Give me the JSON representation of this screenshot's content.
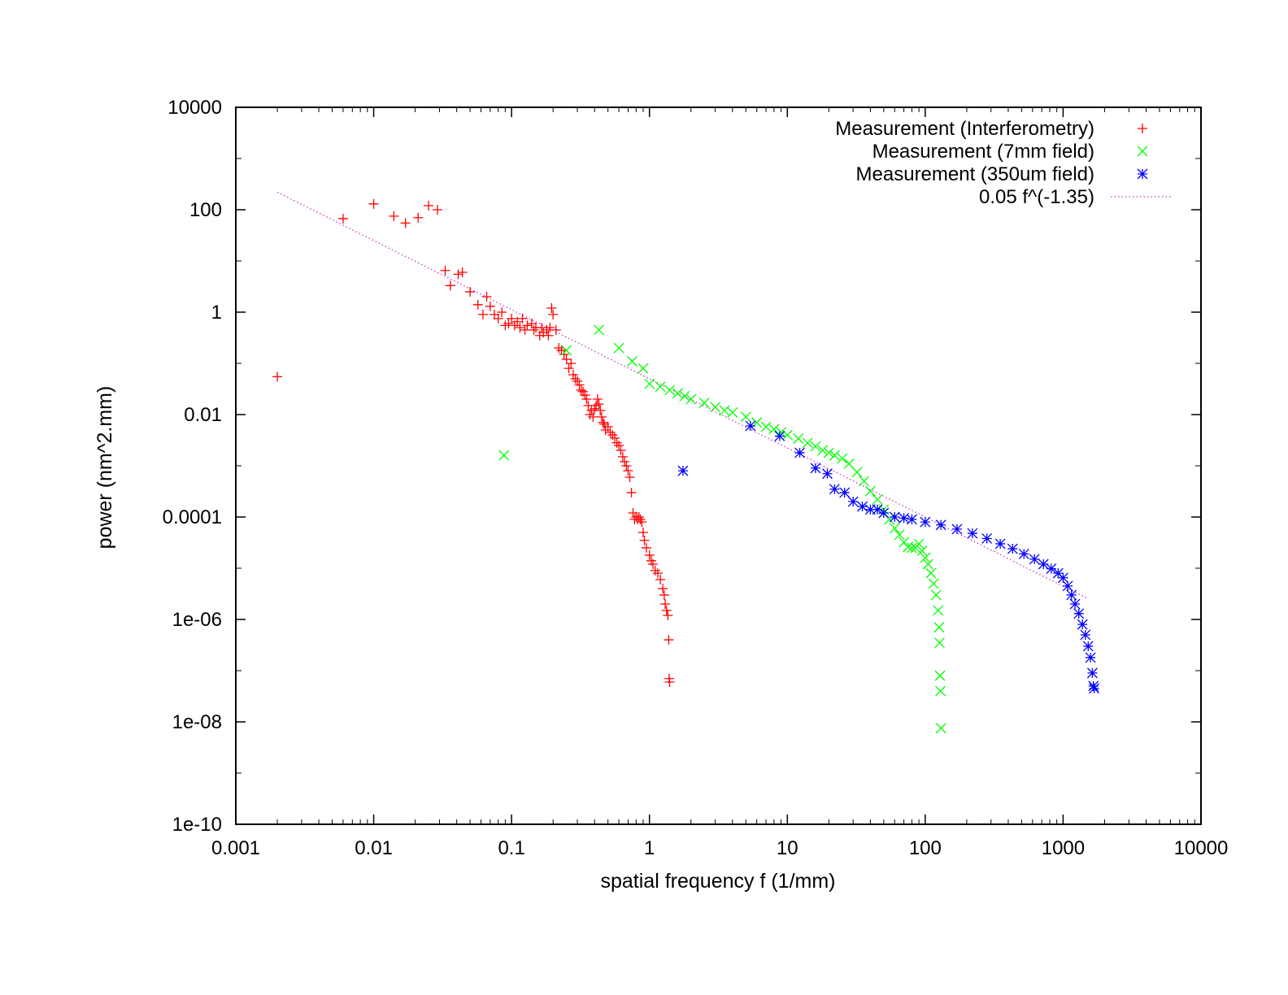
{
  "chart_data": {
    "type": "scatter",
    "title": "",
    "xlabel": "spatial frequency f (1/mm)",
    "ylabel": "power (nm^2.mm)",
    "x_scale": "log",
    "y_scale": "log",
    "xlim": [
      0.001,
      10000
    ],
    "ylim": [
      1e-10,
      10000
    ],
    "x_ticks": [
      {
        "value": 0.001,
        "label": "0.001"
      },
      {
        "value": 0.01,
        "label": "0.01"
      },
      {
        "value": 0.1,
        "label": "0.1"
      },
      {
        "value": 1,
        "label": "1"
      },
      {
        "value": 10,
        "label": "10"
      },
      {
        "value": 100,
        "label": "100"
      },
      {
        "value": 1000,
        "label": "1000"
      },
      {
        "value": 10000,
        "label": "10000"
      }
    ],
    "y_ticks": [
      {
        "value": 1e-10,
        "label": "1e-10"
      },
      {
        "value": 1e-08,
        "label": "1e-08"
      },
      {
        "value": 1e-06,
        "label": "1e-06"
      },
      {
        "value": 0.0001,
        "label": "0.0001"
      },
      {
        "value": 0.01,
        "label": "0.01"
      },
      {
        "value": 1,
        "label": "1"
      },
      {
        "value": 100,
        "label": "100"
      },
      {
        "value": 10000,
        "label": "10000"
      }
    ],
    "grid": false,
    "legend_position": "top-right",
    "series": [
      {
        "name": "Measurement (Interferometry)",
        "marker": "plus",
        "color": "#ff0000",
        "points": [
          [
            0.002,
            0.055
          ],
          [
            0.006,
            67
          ],
          [
            0.01,
            130
          ],
          [
            0.014,
            75
          ],
          [
            0.017,
            55
          ],
          [
            0.021,
            70
          ],
          [
            0.025,
            120
          ],
          [
            0.029,
            100
          ],
          [
            0.033,
            6.5
          ],
          [
            0.036,
            3.3
          ],
          [
            0.041,
            5.5
          ],
          [
            0.044,
            6
          ],
          [
            0.05,
            2.5
          ],
          [
            0.057,
            1.4
          ],
          [
            0.062,
            0.9
          ],
          [
            0.066,
            2
          ],
          [
            0.07,
            1.3
          ],
          [
            0.075,
            0.9
          ],
          [
            0.08,
            0.75
          ],
          [
            0.085,
            1.0
          ],
          [
            0.09,
            0.55
          ],
          [
            0.095,
            0.6
          ],
          [
            0.1,
            0.75
          ],
          [
            0.105,
            0.55
          ],
          [
            0.11,
            0.65
          ],
          [
            0.115,
            0.5
          ],
          [
            0.12,
            0.75
          ],
          [
            0.125,
            0.45
          ],
          [
            0.13,
            0.55
          ],
          [
            0.14,
            0.6
          ],
          [
            0.145,
            0.45
          ],
          [
            0.15,
            0.5
          ],
          [
            0.16,
            0.35
          ],
          [
            0.165,
            0.5
          ],
          [
            0.17,
            0.4
          ],
          [
            0.18,
            0.45
          ],
          [
            0.185,
            0.35
          ],
          [
            0.19,
            0.5
          ],
          [
            0.195,
            1.2
          ],
          [
            0.2,
            0.9
          ],
          [
            0.21,
            0.45
          ],
          [
            0.22,
            0.2
          ],
          [
            0.23,
            0.18
          ],
          [
            0.24,
            0.15
          ],
          [
            0.25,
            0.12
          ],
          [
            0.26,
            0.08
          ],
          [
            0.27,
            0.1
          ],
          [
            0.28,
            0.06
          ],
          [
            0.29,
            0.05
          ],
          [
            0.3,
            0.045
          ],
          [
            0.31,
            0.038
          ],
          [
            0.32,
            0.03
          ],
          [
            0.33,
            0.028
          ],
          [
            0.34,
            0.024
          ],
          [
            0.35,
            0.02
          ],
          [
            0.36,
            0.015
          ],
          [
            0.37,
            0.01
          ],
          [
            0.38,
            0.012
          ],
          [
            0.39,
            0.009
          ],
          [
            0.4,
            0.013
          ],
          [
            0.41,
            0.015
          ],
          [
            0.42,
            0.02
          ],
          [
            0.43,
            0.016
          ],
          [
            0.44,
            0.012
          ],
          [
            0.45,
            0.009
          ],
          [
            0.46,
            0.007
          ],
          [
            0.47,
            0.0065
          ],
          [
            0.48,
            0.005
          ],
          [
            0.5,
            0.0058
          ],
          [
            0.52,
            0.0045
          ],
          [
            0.54,
            0.004
          ],
          [
            0.56,
            0.0035
          ],
          [
            0.58,
            0.0028
          ],
          [
            0.6,
            0.0025
          ],
          [
            0.62,
            0.002
          ],
          [
            0.64,
            0.0015
          ],
          [
            0.66,
            0.0012
          ],
          [
            0.68,
            0.001
          ],
          [
            0.7,
            0.0008
          ],
          [
            0.72,
            0.0006
          ],
          [
            0.74,
            0.0003
          ],
          [
            0.76,
            0.00012
          ],
          [
            0.78,
            9e-05
          ],
          [
            0.8,
            0.0001
          ],
          [
            0.82,
            9e-05
          ],
          [
            0.84,
            0.0001
          ],
          [
            0.86,
            9e-05
          ],
          [
            0.88,
            8e-05
          ],
          [
            0.9,
            5e-05
          ],
          [
            0.92,
            3.5e-05
          ],
          [
            0.95,
            2.5e-05
          ],
          [
            1.0,
            1.8e-05
          ],
          [
            1.03,
            1.4e-05
          ],
          [
            1.06,
            1.2e-05
          ],
          [
            1.1,
            9e-06
          ],
          [
            1.15,
            8e-06
          ],
          [
            1.2,
            6e-06
          ],
          [
            1.25,
            4e-06
          ],
          [
            1.28,
            3e-06
          ],
          [
            1.3,
            2e-06
          ],
          [
            1.33,
            1.5e-06
          ],
          [
            1.36,
            1.2e-06
          ],
          [
            1.38,
            4e-07
          ],
          [
            1.39,
            7e-08
          ],
          [
            1.4,
            6e-08
          ]
        ]
      },
      {
        "name": "Measurement (7mm field)",
        "marker": "cross",
        "color": "#00ff00",
        "points": [
          [
            0.088,
            0.0016
          ],
          [
            0.25,
            0.18
          ],
          [
            0.43,
            0.45
          ],
          [
            0.6,
            0.2
          ],
          [
            0.75,
            0.11
          ],
          [
            0.9,
            0.08
          ],
          [
            1.0,
            0.04
          ],
          [
            1.2,
            0.035
          ],
          [
            1.4,
            0.03
          ],
          [
            1.6,
            0.026
          ],
          [
            1.8,
            0.023
          ],
          [
            2.0,
            0.02
          ],
          [
            2.5,
            0.017
          ],
          [
            3.0,
            0.014
          ],
          [
            3.5,
            0.012
          ],
          [
            4.0,
            0.011
          ],
          [
            5.0,
            0.009
          ],
          [
            6.0,
            0.007
          ],
          [
            7.0,
            0.0058
          ],
          [
            8.0,
            0.0052
          ],
          [
            9.0,
            0.0045
          ],
          [
            10.0,
            0.004
          ],
          [
            12.0,
            0.0034
          ],
          [
            14.0,
            0.0028
          ],
          [
            16.0,
            0.0024
          ],
          [
            18.0,
            0.002
          ],
          [
            20.0,
            0.0018
          ],
          [
            22.0,
            0.0016
          ],
          [
            25.0,
            0.0014
          ],
          [
            28.0,
            0.0011
          ],
          [
            32.0,
            0.00075
          ],
          [
            36.0,
            0.0005
          ],
          [
            40.0,
            0.00032
          ],
          [
            45.0,
            0.00022
          ],
          [
            50.0,
            0.00014
          ],
          [
            55.0,
            9e-05
          ],
          [
            60.0,
            6e-05
          ],
          [
            65.0,
            4.5e-05
          ],
          [
            70.0,
            3.2e-05
          ],
          [
            75.0,
            2.6e-05
          ],
          [
            80.0,
            2.5e-05
          ],
          [
            85.0,
            2.5e-05
          ],
          [
            90.0,
            3e-05
          ],
          [
            95.0,
            2.2e-05
          ],
          [
            100.0,
            1.6e-05
          ],
          [
            105.0,
            1.2e-05
          ],
          [
            110.0,
            8e-06
          ],
          [
            115.0,
            5e-06
          ],
          [
            120.0,
            3e-06
          ],
          [
            124.0,
            1.5e-06
          ],
          [
            126.0,
            7e-07
          ],
          [
            127.0,
            3.5e-07
          ],
          [
            128.0,
            8e-08
          ],
          [
            129.0,
            4e-08
          ],
          [
            130.0,
            7.5e-09
          ]
        ]
      },
      {
        "name": "Measurement (350um field)",
        "marker": "star",
        "color": "#0000ff",
        "points": [
          [
            1.75,
            0.0008
          ],
          [
            5.4,
            0.006
          ],
          [
            8.8,
            0.0038
          ],
          [
            12.3,
            0.0018
          ],
          [
            16.0,
            0.0009
          ],
          [
            19.5,
            0.0007
          ],
          [
            22.0,
            0.00035
          ],
          [
            26.0,
            0.0003
          ],
          [
            30.0,
            0.0002
          ],
          [
            35.0,
            0.00016
          ],
          [
            40.0,
            0.00014
          ],
          [
            45.0,
            0.00014
          ],
          [
            50.0,
            0.00012
          ],
          [
            60.0,
            0.0001
          ],
          [
            70.0,
            9.5e-05
          ],
          [
            80.0,
            9e-05
          ],
          [
            100.0,
            8e-05
          ],
          [
            130.0,
            7e-05
          ],
          [
            170.0,
            5.8e-05
          ],
          [
            220.0,
            4.8e-05
          ],
          [
            280.0,
            3.8e-05
          ],
          [
            350.0,
            3e-05
          ],
          [
            430.0,
            2.4e-05
          ],
          [
            520.0,
            1.9e-05
          ],
          [
            620.0,
            1.5e-05
          ],
          [
            720.0,
            1.2e-05
          ],
          [
            820.0,
            9.8e-06
          ],
          [
            920.0,
            8e-06
          ],
          [
            1000.0,
            6.5e-06
          ],
          [
            1080.0,
            4.5e-06
          ],
          [
            1150.0,
            3e-06
          ],
          [
            1220.0,
            2e-06
          ],
          [
            1300.0,
            1.3e-06
          ],
          [
            1380.0,
            8e-07
          ],
          [
            1450.0,
            5e-07
          ],
          [
            1520.0,
            3e-07
          ],
          [
            1580.0,
            1.8e-07
          ],
          [
            1630.0,
            9e-08
          ],
          [
            1660.0,
            5e-08
          ],
          [
            1680.0,
            4.5e-08
          ]
        ]
      },
      {
        "name": "0.05 f^(-1.35)",
        "marker": "line",
        "style": "dotted",
        "color": "#cc33cc",
        "x": [
          0.002,
          1500
        ],
        "coefficient": 0.05,
        "exponent": -1.35
      }
    ]
  }
}
